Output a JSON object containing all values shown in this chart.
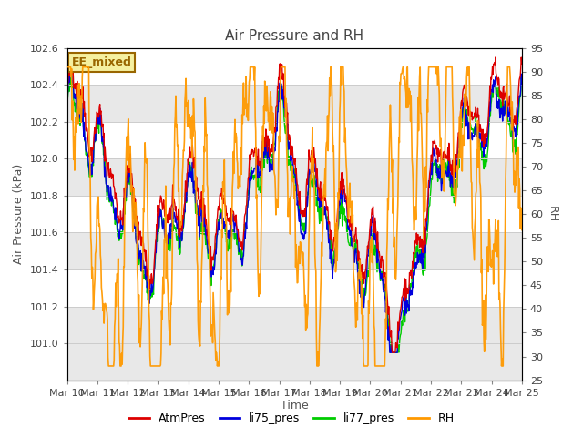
{
  "title": "Air Pressure and RH",
  "xlabel": "Time",
  "ylabel_left": "Air Pressure (kPa)",
  "ylabel_right": "RH",
  "annotation": "EE_mixed",
  "ylim_left": [
    100.8,
    102.6
  ],
  "ylim_right": [
    25,
    95
  ],
  "yticks_left": [
    101.0,
    101.2,
    101.4,
    101.6,
    101.8,
    102.0,
    102.2,
    102.4,
    102.6
  ],
  "yticks_right": [
    25,
    30,
    35,
    40,
    45,
    50,
    55,
    60,
    65,
    70,
    75,
    80,
    85,
    90,
    95
  ],
  "xtick_labels": [
    "Mar 10",
    "Mar 11",
    "Mar 12",
    "Mar 13",
    "Mar 14",
    "Mar 15",
    "Mar 16",
    "Mar 17",
    "Mar 18",
    "Mar 19",
    "Mar 20",
    "Mar 21",
    "Mar 22",
    "Mar 23",
    "Mar 24",
    "Mar 25"
  ],
  "colors": {
    "AtmPres": "#dd0000",
    "li75_pres": "#0000dd",
    "li77_pres": "#00cc00",
    "RH": "#ff9900"
  },
  "linewidths": {
    "AtmPres": 1.0,
    "li75_pres": 1.0,
    "li77_pres": 1.0,
    "RH": 1.2
  },
  "band_colors": [
    "#e8e8e8",
    "#ffffff"
  ],
  "plot_bg": "#ffffff",
  "fig_bg": "#ffffff",
  "grid_color": "#cccccc",
  "annotation_bg": "#f5f0a0",
  "annotation_border": "#996600",
  "title_color": "#444444",
  "axes_label_color": "#555555",
  "tick_label_color": "#444444",
  "tick_label_size": 8,
  "title_size": 11,
  "label_size": 9
}
